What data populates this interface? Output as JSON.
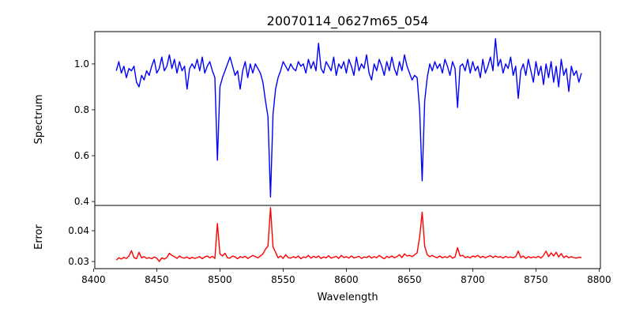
{
  "chart_data": {
    "type": "line",
    "title": "20070114_0627m65_054",
    "xlabel": "Wavelength",
    "x_start": 8418,
    "x_step": 2,
    "xlim": [
      8401,
      8801
    ],
    "x_ticks": [
      8400,
      8450,
      8500,
      8550,
      8600,
      8650,
      8700,
      8750,
      8800
    ],
    "panels": [
      {
        "name": "Spectrum",
        "ylabel": "Spectrum",
        "color": "#0000ff",
        "ylim": [
          0.383,
          1.141
        ],
        "y_ticks": [
          0.4,
          0.6,
          0.8,
          1.0
        ],
        "y_tick_labels": [
          "0.4",
          "0.6",
          "0.8",
          "1.0"
        ],
        "values": [
          0.97,
          1.01,
          0.96,
          0.99,
          0.94,
          0.98,
          0.97,
          0.99,
          0.92,
          0.9,
          0.95,
          0.93,
          0.97,
          0.95,
          0.99,
          1.02,
          0.96,
          0.98,
          1.03,
          0.97,
          0.99,
          1.04,
          0.98,
          1.02,
          0.96,
          1.01,
          0.97,
          0.99,
          0.89,
          0.98,
          1.0,
          0.98,
          1.02,
          0.97,
          1.03,
          0.96,
          0.99,
          1.01,
          0.97,
          0.94,
          0.58,
          0.9,
          0.94,
          0.97,
          1.0,
          1.03,
          0.99,
          0.95,
          0.97,
          0.89,
          0.97,
          1.01,
          0.94,
          1.0,
          0.96,
          1.0,
          0.98,
          0.96,
          0.92,
          0.84,
          0.77,
          0.42,
          0.78,
          0.89,
          0.94,
          0.97,
          1.01,
          0.99,
          0.97,
          1.0,
          0.98,
          0.97,
          1.01,
          0.99,
          1.0,
          0.96,
          1.02,
          0.98,
          1.01,
          0.97,
          1.09,
          0.98,
          0.96,
          1.01,
          0.99,
          0.97,
          1.03,
          0.95,
          1.0,
          0.98,
          1.01,
          0.96,
          1.02,
          0.99,
          0.95,
          1.03,
          0.97,
          1.0,
          0.98,
          1.04,
          0.96,
          0.93,
          1.0,
          0.97,
          1.02,
          0.99,
          0.95,
          1.01,
          0.97,
          1.03,
          0.98,
          0.95,
          1.01,
          0.97,
          1.04,
          0.99,
          0.96,
          0.93,
          0.95,
          0.94,
          0.8,
          0.49,
          0.84,
          0.94,
          1.0,
          0.97,
          1.01,
          0.98,
          1.0,
          0.96,
          1.02,
          0.99,
          0.95,
          1.01,
          0.98,
          0.81,
          0.99,
          1.0,
          0.97,
          1.02,
          0.96,
          1.01,
          0.97,
          0.99,
          0.94,
          1.02,
          0.96,
          0.99,
          1.03,
          0.97,
          1.11,
          0.99,
          1.02,
          0.96,
          1.0,
          0.98,
          1.03,
          0.95,
          0.99,
          0.85,
          0.97,
          1.0,
          0.95,
          1.02,
          0.97,
          0.92,
          1.01,
          0.95,
          0.99,
          0.91,
          1.0,
          0.94,
          1.01,
          0.92,
          0.99,
          0.9,
          1.02,
          0.95,
          0.98,
          0.88,
          0.99,
          0.95,
          0.97,
          0.92,
          0.96
        ]
      },
      {
        "name": "Error",
        "ylabel": "Error",
        "color": "#ff0000",
        "ylim": [
          0.0277,
          0.0482
        ],
        "y_ticks": [
          0.03,
          0.04
        ],
        "y_tick_labels": [
          "0.03",
          "0.04"
        ],
        "values": [
          0.0305,
          0.0312,
          0.0308,
          0.0314,
          0.031,
          0.0318,
          0.0335,
          0.0313,
          0.0309,
          0.033,
          0.0312,
          0.0316,
          0.031,
          0.0313,
          0.0309,
          0.0315,
          0.0311,
          0.03,
          0.0312,
          0.0308,
          0.0313,
          0.0327,
          0.032,
          0.0316,
          0.031,
          0.0318,
          0.0313,
          0.0311,
          0.0315,
          0.0309,
          0.0314,
          0.031,
          0.0313,
          0.0316,
          0.0309,
          0.0315,
          0.0318,
          0.0312,
          0.0317,
          0.031,
          0.0423,
          0.0325,
          0.0318,
          0.0327,
          0.0312,
          0.0311,
          0.0318,
          0.0315,
          0.0309,
          0.0316,
          0.0313,
          0.0317,
          0.031,
          0.0315,
          0.032,
          0.0316,
          0.0312,
          0.0318,
          0.0325,
          0.034,
          0.035,
          0.0475,
          0.0348,
          0.033,
          0.0312,
          0.0318,
          0.031,
          0.0322,
          0.0313,
          0.0311,
          0.0316,
          0.0312,
          0.0318,
          0.0309,
          0.0315,
          0.0313,
          0.032,
          0.0311,
          0.0317,
          0.0313,
          0.0318,
          0.031,
          0.0315,
          0.0312,
          0.0319,
          0.0311,
          0.0314,
          0.0317,
          0.031,
          0.032,
          0.0313,
          0.0316,
          0.0311,
          0.0318,
          0.0312,
          0.0314,
          0.0317,
          0.031,
          0.0315,
          0.0313,
          0.0318,
          0.0311,
          0.0316,
          0.0312,
          0.032,
          0.0314,
          0.0309,
          0.0317,
          0.0313,
          0.0318,
          0.0312,
          0.0316,
          0.0322,
          0.0313,
          0.0325,
          0.0318,
          0.032,
          0.0316,
          0.0322,
          0.0328,
          0.038,
          0.046,
          0.035,
          0.0322,
          0.0316,
          0.032,
          0.0315,
          0.0313,
          0.0318,
          0.0312,
          0.0316,
          0.0313,
          0.0319,
          0.0311,
          0.0315,
          0.0345,
          0.0318,
          0.032,
          0.0313,
          0.0316,
          0.0312,
          0.0318,
          0.0315,
          0.032,
          0.0313,
          0.0317,
          0.0312,
          0.0316,
          0.0319,
          0.0313,
          0.0318,
          0.0314,
          0.0316,
          0.0311,
          0.0317,
          0.0313,
          0.0315,
          0.0312,
          0.0316,
          0.0334,
          0.0313,
          0.0318,
          0.031,
          0.0316,
          0.0312,
          0.0315,
          0.0313,
          0.0317,
          0.0311,
          0.032,
          0.0334,
          0.0316,
          0.0328,
          0.0318,
          0.033,
          0.0315,
          0.0326,
          0.0313,
          0.0318,
          0.0312,
          0.0316,
          0.0313,
          0.0311,
          0.0314,
          0.0313
        ]
      }
    ]
  }
}
